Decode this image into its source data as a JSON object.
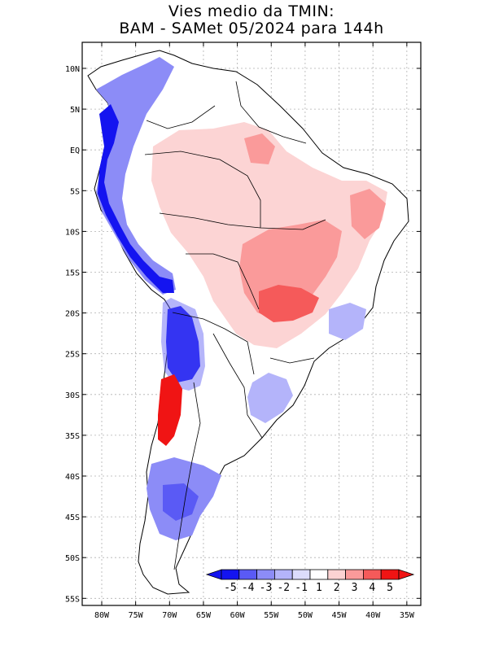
{
  "title": {
    "line1": "Vies medio da TMIN:",
    "line2": "BAM - SAMet 05/2024  para 144h"
  },
  "axes": {
    "lat_labels": [
      "10N",
      "5N",
      "EQ",
      "5S",
      "10S",
      "15S",
      "20S",
      "25S",
      "30S",
      "35S",
      "40S",
      "45S",
      "50S",
      "55S"
    ],
    "lon_labels": [
      "80W",
      "75W",
      "70W",
      "65W",
      "60W",
      "55W",
      "50W",
      "45W",
      "40W",
      "35W"
    ]
  },
  "legend": {
    "levels": [
      "-5",
      "-4",
      "-3",
      "-2",
      "-1",
      "1",
      "2",
      "3",
      "4",
      "5"
    ],
    "colors": [
      "#1414f0",
      "#5a5af5",
      "#8c8cf7",
      "#b4b4fa",
      "#dcdcfc",
      "#ffffff",
      "#fcd2d2",
      "#fa9a9a",
      "#f55a5a",
      "#f01414"
    ]
  },
  "colors": {
    "frame": "#000000",
    "grid": "#b0b0b0",
    "land_outline": "#000000"
  }
}
